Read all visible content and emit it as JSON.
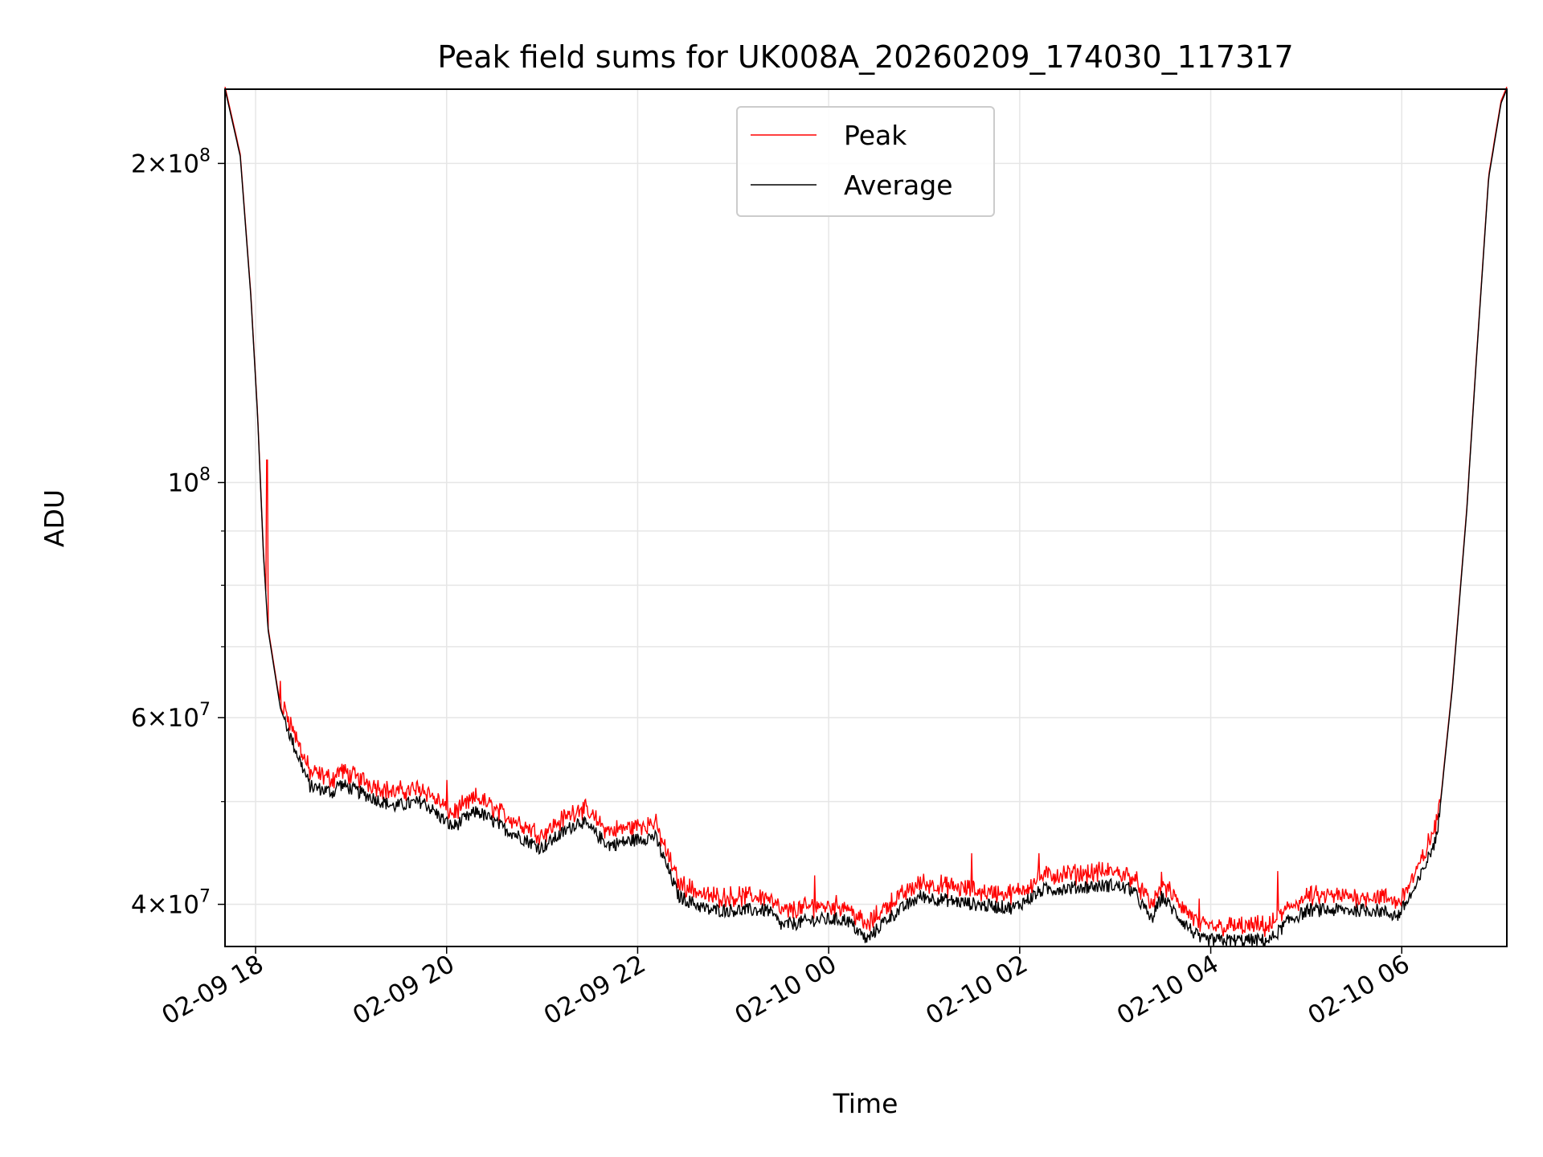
{
  "chart_data": {
    "type": "line",
    "title": "Peak field sums for UK008A_20260209_174030_117317",
    "xlabel": "Time",
    "ylabel": "ADU",
    "x_units": "hours since 02-09 00:00",
    "xlim": [
      17.68,
      31.1
    ],
    "ylim": [
      36500000,
      235000000
    ],
    "yscale": "log",
    "grid": true,
    "legend_placement": "upper-center",
    "x_ticks": [
      {
        "value": 18,
        "label": "02-09 18"
      },
      {
        "value": 20,
        "label": "02-09 20"
      },
      {
        "value": 22,
        "label": "02-09 22"
      },
      {
        "value": 24,
        "label": "02-10 00"
      },
      {
        "value": 26,
        "label": "02-10 02"
      },
      {
        "value": 28,
        "label": "02-10 04"
      },
      {
        "value": 30,
        "label": "02-10 06"
      }
    ],
    "y_ticks": [
      {
        "value": 200000000,
        "mant": "2",
        "exp": "8"
      },
      {
        "value": 100000000,
        "mant": "",
        "exp": "8"
      },
      {
        "value": 60000000,
        "mant": "6",
        "exp": "7"
      },
      {
        "value": 40000000,
        "mant": "4",
        "exp": "7"
      }
    ],
    "y_minor_grid": [
      90000000,
      80000000,
      70000000,
      50000000
    ],
    "series": [
      {
        "name": "Peak",
        "color": "#ff0000",
        "offset_ratio": 1.025,
        "spikes": [
          [
            18.12,
            105000000
          ],
          [
            18.26,
            65000000
          ],
          [
            20.0,
            52400000
          ],
          [
            23.85,
            42600000
          ],
          [
            25.5,
            44700000
          ],
          [
            26.2,
            44700000
          ],
          [
            27.88,
            40500000
          ],
          [
            28.7,
            43000000
          ]
        ]
      },
      {
        "name": "Average",
        "color": "#000000",
        "x": [
          17.68,
          17.84,
          17.95,
          18.02,
          18.08,
          18.13,
          18.26,
          18.41,
          18.57,
          18.82,
          18.87,
          19.44,
          19.75,
          20.06,
          20.32,
          20.58,
          20.99,
          21.4,
          21.7,
          22.18,
          22.43,
          22.74,
          23.36,
          23.51,
          23.87,
          24.19,
          24.4,
          24.6,
          24.96,
          25.63,
          25.94,
          26.25,
          26.97,
          27.18,
          27.38,
          27.49,
          27.69,
          27.9,
          28.62,
          28.83,
          29.03,
          29.75,
          29.96,
          30.16,
          30.37,
          30.53,
          30.68,
          30.78,
          30.91,
          31.04,
          31.1
        ],
        "y": [
          235000000,
          203000000,
          150000000,
          116000000,
          86300000,
          72700000,
          61200000,
          56200000,
          51700000,
          51000000,
          52000000,
          49500000,
          50000000,
          47300000,
          49000000,
          47300000,
          45200000,
          48000000,
          45500000,
          46400000,
          40700000,
          39500000,
          39500000,
          38200000,
          38700000,
          38700000,
          37000000,
          38700000,
          40700000,
          39900000,
          39700000,
          41300000,
          41700000,
          41300000,
          38700000,
          40700000,
          38700000,
          37000000,
          37000000,
          38700000,
          39500000,
          39500000,
          39000000,
          41700000,
          46400000,
          64000000,
          94000000,
          130000000,
          194000000,
          228000000,
          235000000
        ]
      }
    ]
  }
}
